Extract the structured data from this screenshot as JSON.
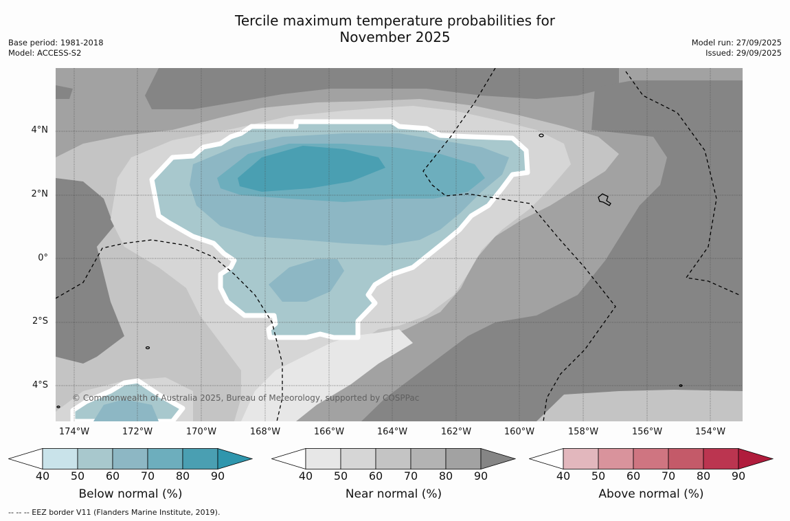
{
  "title": {
    "line1": "Tercile maximum temperature probabilities for",
    "line2": "November 2025"
  },
  "meta_left": {
    "base_period": "Base period: 1981-2018",
    "model": "Model: ACCESS-S2"
  },
  "meta_right": {
    "model_run": "Model run: 27/09/2025",
    "issued": "Issued: 29/09/2025"
  },
  "map": {
    "copyright": "© Commonwealth of Australia 2025, Bureau of Meteorology, supported by COSPPac",
    "lat_labels": [
      "4°N",
      "2°N",
      "0°",
      "2°S",
      "4°S"
    ],
    "lon_labels": [
      "174°W",
      "172°W",
      "170°W",
      "168°W",
      "166°W",
      "164°W",
      "162°W",
      "160°W",
      "158°W",
      "156°W",
      "154°W"
    ]
  },
  "colorbars": [
    {
      "label": "Below normal (%)",
      "ticks": [
        "40",
        "50",
        "60",
        "70",
        "80",
        "90"
      ],
      "colors": [
        "#ffffff",
        "#c9e3ea",
        "#a8c8cd",
        "#8db7c4",
        "#6daebd",
        "#4a9fb2",
        "#2f96ad"
      ]
    },
    {
      "label": "Near normal (%)",
      "ticks": [
        "40",
        "50",
        "60",
        "70",
        "80",
        "90"
      ],
      "colors": [
        "#ffffff",
        "#e7e7e7",
        "#d6d6d6",
        "#c4c4c4",
        "#b3b3b3",
        "#a2a2a2",
        "#858585"
      ]
    },
    {
      "label": "Above normal (%)",
      "ticks": [
        "40",
        "50",
        "60",
        "70",
        "80",
        "90"
      ],
      "colors": [
        "#ffffff",
        "#e2b7bd",
        "#d9939c",
        "#cf7581",
        "#c45a69",
        "#bb3550",
        "#b01c3c"
      ]
    }
  ],
  "footer": "--  --  -- EEZ border V11 (Flanders Marine Institute, 2019)."
}
